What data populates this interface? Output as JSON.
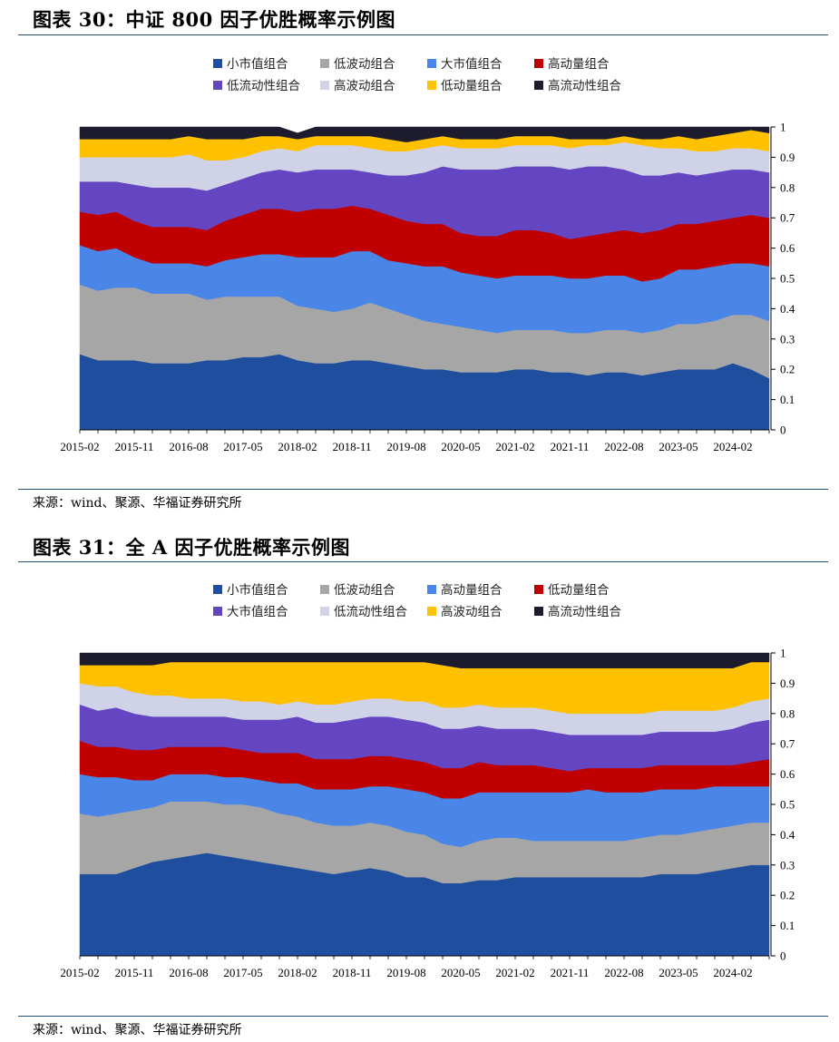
{
  "figures": [
    {
      "title": "图表 30：中证 800 因子优胜概率示例图",
      "source": "来源：wind、聚源、华福证券研究所",
      "chart_data": {
        "type": "area",
        "stacked": true,
        "x_tick_labels": [
          "2015-02",
          "2015-11",
          "2016-08",
          "2017-05",
          "2018-02",
          "2018-11",
          "2019-08",
          "2020-05",
          "2021-02",
          "2021-11",
          "2022-08",
          "2023-05",
          "2024-02"
        ],
        "y_tick_labels": [
          "0",
          "0.1",
          "0.2",
          "0.3",
          "0.4",
          "0.5",
          "0.6",
          "0.7",
          "0.8",
          "0.9",
          "1"
        ],
        "ylim": [
          0,
          1
        ],
        "y_axis_side": "right",
        "legend_position": "top",
        "x": [
          "2015-02",
          "2015-05",
          "2015-08",
          "2015-11",
          "2016-02",
          "2016-05",
          "2016-08",
          "2016-11",
          "2017-02",
          "2017-05",
          "2017-08",
          "2017-11",
          "2018-02",
          "2018-05",
          "2018-08",
          "2018-11",
          "2019-02",
          "2019-05",
          "2019-08",
          "2019-11",
          "2020-02",
          "2020-05",
          "2020-08",
          "2020-11",
          "2021-02",
          "2021-05",
          "2021-08",
          "2021-11",
          "2022-02",
          "2022-05",
          "2022-08",
          "2022-11",
          "2023-02",
          "2023-05",
          "2023-08",
          "2023-11",
          "2024-02",
          "2024-05",
          "2024-08"
        ],
        "series": [
          {
            "name": "小市值组合",
            "color": "#1f4e9e",
            "values": [
              0.25,
              0.23,
              0.23,
              0.23,
              0.22,
              0.22,
              0.22,
              0.23,
              0.23,
              0.24,
              0.24,
              0.25,
              0.23,
              0.22,
              0.22,
              0.23,
              0.23,
              0.22,
              0.21,
              0.2,
              0.2,
              0.19,
              0.19,
              0.19,
              0.2,
              0.2,
              0.19,
              0.19,
              0.18,
              0.19,
              0.19,
              0.18,
              0.19,
              0.2,
              0.2,
              0.2,
              0.22,
              0.2,
              0.17
            ]
          },
          {
            "name": "低波动组合",
            "color": "#a6a6a6",
            "values": [
              0.23,
              0.23,
              0.24,
              0.24,
              0.23,
              0.23,
              0.23,
              0.2,
              0.21,
              0.2,
              0.2,
              0.19,
              0.18,
              0.18,
              0.17,
              0.17,
              0.19,
              0.18,
              0.17,
              0.16,
              0.15,
              0.15,
              0.14,
              0.13,
              0.13,
              0.13,
              0.14,
              0.13,
              0.14,
              0.14,
              0.14,
              0.14,
              0.14,
              0.15,
              0.15,
              0.16,
              0.16,
              0.18,
              0.19
            ]
          },
          {
            "name": "大市值组合",
            "color": "#4a86e8",
            "values": [
              0.13,
              0.13,
              0.13,
              0.1,
              0.1,
              0.1,
              0.1,
              0.11,
              0.12,
              0.13,
              0.14,
              0.14,
              0.16,
              0.17,
              0.18,
              0.19,
              0.17,
              0.16,
              0.17,
              0.18,
              0.19,
              0.18,
              0.18,
              0.18,
              0.18,
              0.18,
              0.18,
              0.18,
              0.18,
              0.18,
              0.18,
              0.17,
              0.17,
              0.18,
              0.18,
              0.18,
              0.17,
              0.17,
              0.18
            ]
          },
          {
            "name": "高动量组合",
            "color": "#c00000",
            "values": [
              0.11,
              0.12,
              0.12,
              0.12,
              0.12,
              0.12,
              0.12,
              0.12,
              0.13,
              0.14,
              0.15,
              0.15,
              0.15,
              0.16,
              0.16,
              0.15,
              0.14,
              0.15,
              0.14,
              0.14,
              0.14,
              0.13,
              0.13,
              0.14,
              0.15,
              0.15,
              0.14,
              0.13,
              0.14,
              0.14,
              0.15,
              0.16,
              0.16,
              0.15,
              0.15,
              0.15,
              0.15,
              0.16,
              0.16
            ]
          },
          {
            "name": "低流动性组合",
            "color": "#6446c2",
            "values": [
              0.1,
              0.11,
              0.1,
              0.12,
              0.13,
              0.13,
              0.13,
              0.13,
              0.12,
              0.12,
              0.12,
              0.13,
              0.13,
              0.13,
              0.13,
              0.12,
              0.12,
              0.13,
              0.15,
              0.17,
              0.19,
              0.21,
              0.22,
              0.22,
              0.21,
              0.21,
              0.22,
              0.23,
              0.23,
              0.22,
              0.2,
              0.19,
              0.18,
              0.17,
              0.16,
              0.16,
              0.16,
              0.15,
              0.15
            ]
          },
          {
            "name": "高波动组合",
            "color": "#d0d3e8",
            "values": [
              0.08,
              0.08,
              0.08,
              0.09,
              0.1,
              0.1,
              0.11,
              0.1,
              0.08,
              0.07,
              0.07,
              0.07,
              0.07,
              0.08,
              0.08,
              0.08,
              0.08,
              0.08,
              0.08,
              0.08,
              0.07,
              0.07,
              0.07,
              0.07,
              0.07,
              0.07,
              0.07,
              0.07,
              0.07,
              0.07,
              0.09,
              0.1,
              0.09,
              0.08,
              0.08,
              0.07,
              0.07,
              0.07,
              0.07
            ]
          },
          {
            "name": "低动量组合",
            "color": "#ffc000",
            "values": [
              0.06,
              0.06,
              0.06,
              0.06,
              0.06,
              0.06,
              0.06,
              0.07,
              0.07,
              0.06,
              0.05,
              0.04,
              0.04,
              0.03,
              0.03,
              0.03,
              0.04,
              0.04,
              0.03,
              0.03,
              0.03,
              0.03,
              0.03,
              0.03,
              0.03,
              0.03,
              0.03,
              0.03,
              0.02,
              0.02,
              0.02,
              0.02,
              0.03,
              0.04,
              0.04,
              0.05,
              0.05,
              0.06,
              0.06
            ]
          },
          {
            "name": "高流动性组合",
            "color": "#1c1c2e",
            "values": [
              0.04,
              0.04,
              0.04,
              0.04,
              0.04,
              0.04,
              0.03,
              0.04,
              0.04,
              0.04,
              0.03,
              0.03,
              0.02,
              0.03,
              0.03,
              0.03,
              0.03,
              0.04,
              0.05,
              0.04,
              0.03,
              0.04,
              0.04,
              0.04,
              0.03,
              0.03,
              0.03,
              0.04,
              0.04,
              0.04,
              0.03,
              0.04,
              0.04,
              0.03,
              0.04,
              0.03,
              0.02,
              0.01,
              0.02
            ]
          }
        ]
      }
    },
    {
      "title": "图表 31：全 A 因子优胜概率示例图",
      "source": "来源：wind、聚源、华福证券研究所",
      "chart_data": {
        "type": "area",
        "stacked": true,
        "x_tick_labels": [
          "2015-02",
          "2015-11",
          "2016-08",
          "2017-05",
          "2018-02",
          "2018-11",
          "2019-08",
          "2020-05",
          "2021-02",
          "2021-11",
          "2022-08",
          "2023-05",
          "2024-02"
        ],
        "y_tick_labels": [
          "0",
          "0.1",
          "0.2",
          "0.3",
          "0.4",
          "0.5",
          "0.6",
          "0.7",
          "0.8",
          "0.9",
          "1"
        ],
        "ylim": [
          0,
          1
        ],
        "y_axis_side": "right",
        "legend_position": "top",
        "x": [
          "2015-02",
          "2015-05",
          "2015-08",
          "2015-11",
          "2016-02",
          "2016-05",
          "2016-08",
          "2016-11",
          "2017-02",
          "2017-05",
          "2017-08",
          "2017-11",
          "2018-02",
          "2018-05",
          "2018-08",
          "2018-11",
          "2019-02",
          "2019-05",
          "2019-08",
          "2019-11",
          "2020-02",
          "2020-05",
          "2020-08",
          "2020-11",
          "2021-02",
          "2021-05",
          "2021-08",
          "2021-11",
          "2022-02",
          "2022-05",
          "2022-08",
          "2022-11",
          "2023-02",
          "2023-05",
          "2023-08",
          "2023-11",
          "2024-02",
          "2024-05",
          "2024-08"
        ],
        "series": [
          {
            "name": "小市值组合",
            "color": "#1f4e9e",
            "values": [
              0.27,
              0.27,
              0.27,
              0.29,
              0.31,
              0.32,
              0.33,
              0.34,
              0.33,
              0.32,
              0.31,
              0.3,
              0.29,
              0.28,
              0.27,
              0.28,
              0.29,
              0.28,
              0.26,
              0.26,
              0.24,
              0.24,
              0.25,
              0.25,
              0.26,
              0.26,
              0.26,
              0.26,
              0.26,
              0.26,
              0.26,
              0.26,
              0.27,
              0.27,
              0.27,
              0.28,
              0.29,
              0.3,
              0.3
            ]
          },
          {
            "name": "低波动组合",
            "color": "#a6a6a6",
            "values": [
              0.2,
              0.19,
              0.2,
              0.19,
              0.18,
              0.19,
              0.18,
              0.17,
              0.17,
              0.18,
              0.18,
              0.17,
              0.17,
              0.16,
              0.16,
              0.15,
              0.15,
              0.15,
              0.15,
              0.14,
              0.13,
              0.12,
              0.13,
              0.14,
              0.13,
              0.12,
              0.12,
              0.12,
              0.12,
              0.12,
              0.12,
              0.13,
              0.13,
              0.13,
              0.14,
              0.14,
              0.14,
              0.14,
              0.14
            ]
          },
          {
            "name": "高动量组合",
            "color": "#4a86e8",
            "values": [
              0.13,
              0.13,
              0.12,
              0.1,
              0.09,
              0.09,
              0.09,
              0.09,
              0.09,
              0.09,
              0.09,
              0.1,
              0.11,
              0.11,
              0.12,
              0.12,
              0.12,
              0.13,
              0.14,
              0.14,
              0.15,
              0.16,
              0.16,
              0.15,
              0.15,
              0.16,
              0.16,
              0.16,
              0.17,
              0.16,
              0.16,
              0.15,
              0.15,
              0.15,
              0.14,
              0.14,
              0.13,
              0.12,
              0.12
            ]
          },
          {
            "name": "低动量组合",
            "color": "#c00000",
            "values": [
              0.11,
              0.1,
              0.1,
              0.1,
              0.1,
              0.09,
              0.09,
              0.09,
              0.1,
              0.09,
              0.09,
              0.1,
              0.1,
              0.1,
              0.1,
              0.1,
              0.1,
              0.1,
              0.1,
              0.1,
              0.1,
              0.1,
              0.1,
              0.09,
              0.09,
              0.09,
              0.08,
              0.07,
              0.07,
              0.08,
              0.08,
              0.08,
              0.08,
              0.08,
              0.08,
              0.07,
              0.07,
              0.08,
              0.09
            ]
          },
          {
            "name": "大市值组合",
            "color": "#6446c2",
            "values": [
              0.12,
              0.12,
              0.13,
              0.12,
              0.11,
              0.1,
              0.1,
              0.1,
              0.1,
              0.1,
              0.11,
              0.11,
              0.12,
              0.12,
              0.12,
              0.13,
              0.13,
              0.13,
              0.13,
              0.13,
              0.13,
              0.13,
              0.12,
              0.12,
              0.12,
              0.12,
              0.12,
              0.12,
              0.11,
              0.11,
              0.11,
              0.11,
              0.11,
              0.11,
              0.11,
              0.11,
              0.12,
              0.13,
              0.13
            ]
          },
          {
            "name": "低流动性组合",
            "color": "#d0d3e8",
            "values": [
              0.07,
              0.08,
              0.07,
              0.07,
              0.07,
              0.07,
              0.06,
              0.06,
              0.06,
              0.06,
              0.06,
              0.05,
              0.05,
              0.06,
              0.06,
              0.06,
              0.06,
              0.06,
              0.06,
              0.07,
              0.07,
              0.07,
              0.07,
              0.07,
              0.07,
              0.07,
              0.07,
              0.07,
              0.07,
              0.07,
              0.07,
              0.07,
              0.07,
              0.07,
              0.07,
              0.07,
              0.07,
              0.07,
              0.07
            ]
          },
          {
            "name": "高波动组合",
            "color": "#ffc000",
            "values": [
              0.06,
              0.07,
              0.07,
              0.09,
              0.1,
              0.11,
              0.12,
              0.12,
              0.12,
              0.13,
              0.13,
              0.14,
              0.13,
              0.14,
              0.14,
              0.13,
              0.12,
              0.12,
              0.13,
              0.13,
              0.14,
              0.13,
              0.12,
              0.13,
              0.13,
              0.13,
              0.14,
              0.15,
              0.15,
              0.15,
              0.15,
              0.15,
              0.14,
              0.14,
              0.14,
              0.14,
              0.13,
              0.13,
              0.12
            ]
          },
          {
            "name": "高流动性组合",
            "color": "#1c1c2e",
            "values": [
              0.04,
              0.04,
              0.04,
              0.04,
              0.04,
              0.03,
              0.03,
              0.03,
              0.03,
              0.03,
              0.03,
              0.03,
              0.03,
              0.03,
              0.03,
              0.03,
              0.03,
              0.03,
              0.03,
              0.03,
              0.04,
              0.05,
              0.05,
              0.05,
              0.05,
              0.05,
              0.05,
              0.05,
              0.05,
              0.05,
              0.05,
              0.05,
              0.05,
              0.05,
              0.05,
              0.05,
              0.05,
              0.03,
              0.03
            ]
          }
        ]
      }
    }
  ]
}
